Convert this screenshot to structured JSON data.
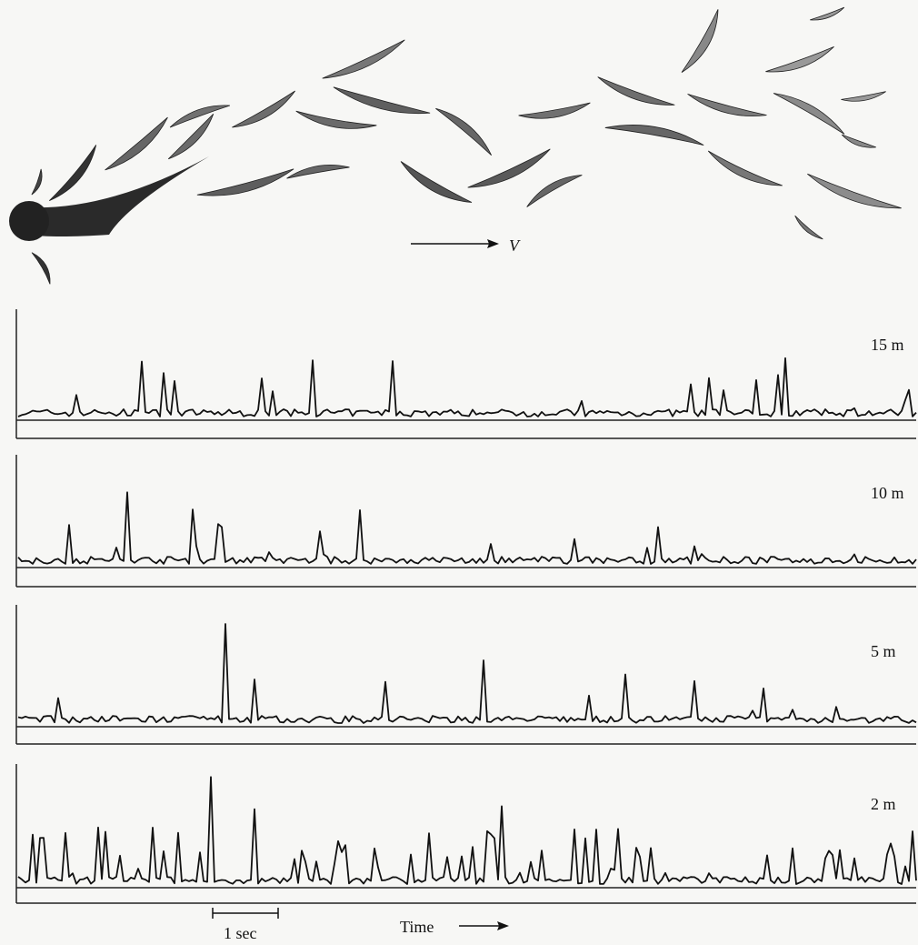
{
  "figure": {
    "velocity_label": "V",
    "traces": [
      {
        "label": "15 m"
      },
      {
        "label": "10 m"
      },
      {
        "label": "5 m"
      },
      {
        "label": "2 m"
      }
    ],
    "scale_bar": "1 sec",
    "time_label": "Time"
  }
}
